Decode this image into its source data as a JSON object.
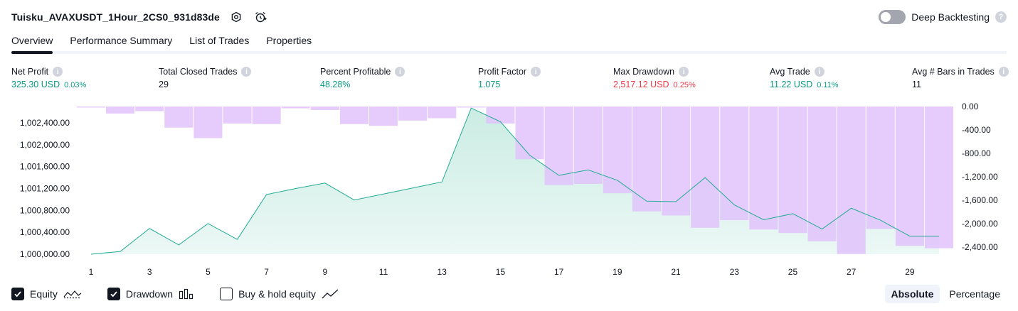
{
  "header": {
    "title": "Tuisku_AVAXUSDT_1Hour_2CS0_931d83de",
    "deep_backtesting_label": "Deep Backtesting"
  },
  "tabs": [
    "Overview",
    "Performance Summary",
    "List of Trades",
    "Properties"
  ],
  "metrics": [
    {
      "label": "Net Profit",
      "value": "325.30 USD",
      "pct": "0.03%",
      "color": "green"
    },
    {
      "label": "Total Closed Trades",
      "value": "29",
      "pct": "",
      "color": "dark"
    },
    {
      "label": "Percent Profitable",
      "value": "48.28%",
      "pct": "",
      "color": "green"
    },
    {
      "label": "Profit Factor",
      "value": "1.075",
      "pct": "",
      "color": "green"
    },
    {
      "label": "Max Drawdown",
      "value": "2,517.12 USD",
      "pct": "0.25%",
      "color": "red"
    },
    {
      "label": "Avg Trade",
      "value": "11.22 USD",
      "pct": "0.11%",
      "color": "green"
    },
    {
      "label": "Avg # Bars in Trades",
      "value": "11",
      "pct": "",
      "color": "dark"
    }
  ],
  "chart_data": {
    "type": "line",
    "x": [
      1,
      2,
      3,
      4,
      5,
      6,
      7,
      8,
      9,
      10,
      11,
      12,
      13,
      14,
      15,
      16,
      17,
      18,
      19,
      20,
      21,
      22,
      23,
      24,
      25,
      26,
      27,
      28,
      29,
      30
    ],
    "x_tick_labels": [
      "1",
      "3",
      "5",
      "7",
      "9",
      "11",
      "13",
      "15",
      "17",
      "19",
      "21",
      "23",
      "25",
      "27",
      "29"
    ],
    "series": [
      {
        "axis": "left",
        "values": [
          1000000,
          1000050,
          1000470,
          1000170,
          1000560,
          1000270,
          1001090,
          1001200,
          1001300,
          1000990,
          1001100,
          1001210,
          1001320,
          1002670,
          1002420,
          1001810,
          1001440,
          1001540,
          1001350,
          1000970,
          1000960,
          1001400,
          1000900,
          1000630,
          1000740,
          1000460,
          1000840,
          1000620,
          1000330,
          1000330
        ]
      },
      {
        "axis": "right",
        "values": [
          -15,
          -120,
          -80,
          -360,
          -540,
          -290,
          -300,
          -30,
          -60,
          -300,
          -330,
          -240,
          -200,
          0,
          -290,
          -900,
          -1340,
          -1320,
          -1480,
          -1790,
          -1860,
          -2070,
          -1940,
          -2100,
          -2160,
          -2300,
          -2517,
          -2090,
          -2380,
          -2420
        ]
      }
    ],
    "left_axis": {
      "ylim": [
        1000000,
        1002400
      ],
      "tick_values": [
        1000000,
        1000400,
        1000800,
        1001200,
        1001600,
        1002000,
        1002400
      ],
      "tick_labels": [
        "1,000,000.00",
        "1,000,400.00",
        "1,000,800.00",
        "1,001,200.00",
        "1,001,600.00",
        "1,002,000.00",
        "1,002,400.00"
      ]
    },
    "right_axis": {
      "ylim": [
        -2400,
        0
      ],
      "tick_values": [
        0,
        -400,
        -800,
        -1200,
        -1600,
        -2000,
        -2400
      ],
      "tick_labels": [
        "0.00",
        "-400.00",
        "-800.00",
        "-1,200.00",
        "-1,600.00",
        "-2,000.00",
        "-2,400.00"
      ]
    },
    "colors": {
      "equity_line": "#22ab94",
      "equity_fill": "#c8ebe2",
      "drawdown": "#e1c3fb"
    }
  },
  "legend": {
    "equity": "Equity",
    "drawdown": "Drawdown",
    "buy_hold": "Buy & hold equity"
  },
  "modes": [
    "Absolute",
    "Percentage"
  ]
}
